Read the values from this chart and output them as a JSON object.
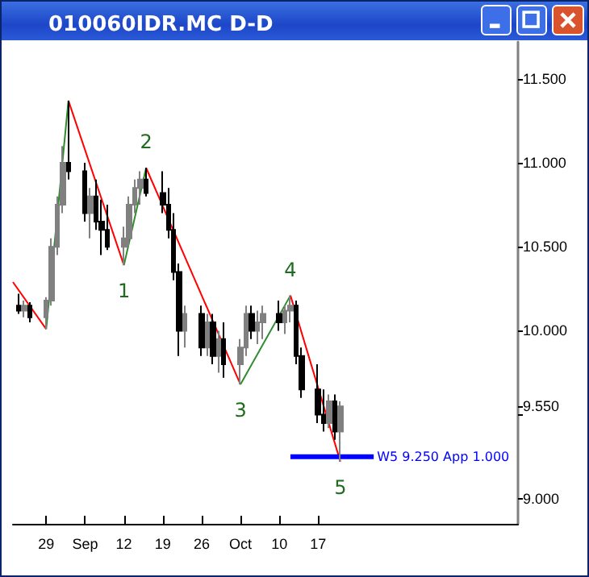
{
  "chart_data": {
    "type": "candlestick",
    "title": "010060IDR.MC D-D",
    "x": [
      "--08-24",
      "--08-25",
      "--08-26",
      "--08-29",
      "--08-30",
      "--08-31",
      "--09-01",
      "--09-02",
      "--09-05",
      "--09-06",
      "--09-07",
      "--09-08",
      "--09-09",
      "--09-12",
      "--09-13",
      "--09-14",
      "--09-15",
      "--09-16",
      "--09-19",
      "--09-20",
      "--09-21",
      "--09-22",
      "--09-23",
      "--09-26",
      "--09-27",
      "--09-28",
      "--09-29",
      "--09-30",
      "--10-03",
      "--10-04",
      "--10-05",
      "--10-06",
      "--10-07",
      "--10-10",
      "--10-11",
      "--10-12",
      "--10-13",
      "--10-14",
      "--10-17",
      "--10-18",
      "--10-19",
      "--10-20",
      "--10-21"
    ],
    "ohlc": [
      [
        10.15,
        10.22,
        10.1,
        10.12
      ],
      [
        10.12,
        10.18,
        10.08,
        10.15
      ],
      [
        10.15,
        10.17,
        10.05,
        10.08
      ],
      [
        10.08,
        10.2,
        10.01,
        10.18
      ],
      [
        10.18,
        10.55,
        10.15,
        10.5
      ],
      [
        10.5,
        10.8,
        10.45,
        10.75
      ],
      [
        10.75,
        11.1,
        10.7,
        11.0
      ],
      [
        11.0,
        11.37,
        10.9,
        10.95
      ],
      [
        10.95,
        11.0,
        10.65,
        10.7
      ],
      [
        10.7,
        10.85,
        10.55,
        10.8
      ],
      [
        10.8,
        10.9,
        10.6,
        10.65
      ],
      [
        10.65,
        10.78,
        10.45,
        10.6
      ],
      [
        10.6,
        10.75,
        10.48,
        10.5
      ],
      [
        10.5,
        10.62,
        10.39,
        10.55
      ],
      [
        10.55,
        10.8,
        10.5,
        10.75
      ],
      [
        10.75,
        10.9,
        10.7,
        10.85
      ],
      [
        10.85,
        10.95,
        10.75,
        10.9
      ],
      [
        10.9,
        10.97,
        10.8,
        10.82
      ],
      [
        10.82,
        10.95,
        10.7,
        10.75
      ],
      [
        10.75,
        10.85,
        10.55,
        10.6
      ],
      [
        10.6,
        10.7,
        10.3,
        10.35
      ],
      [
        10.35,
        10.4,
        9.85,
        10.0
      ],
      [
        10.0,
        10.15,
        9.9,
        10.1
      ],
      [
        10.1,
        10.15,
        9.85,
        9.9
      ],
      [
        9.9,
        10.1,
        9.85,
        10.05
      ],
      [
        10.05,
        10.1,
        9.8,
        9.85
      ],
      [
        9.85,
        10.0,
        9.75,
        9.95
      ],
      [
        9.95,
        10.05,
        9.72,
        9.8
      ],
      [
        9.8,
        9.95,
        9.68,
        9.9
      ],
      [
        9.9,
        10.15,
        9.85,
        10.1
      ],
      [
        10.1,
        10.15,
        9.95,
        10.0
      ],
      [
        10.0,
        10.12,
        9.92,
        10.05
      ],
      [
        10.05,
        10.15,
        9.95,
        10.1
      ],
      [
        10.1,
        10.18,
        10.0,
        10.05
      ],
      [
        10.05,
        10.15,
        9.98,
        10.12
      ],
      [
        10.12,
        10.21,
        10.05,
        10.15
      ],
      [
        10.15,
        10.18,
        9.8,
        9.85
      ],
      [
        9.85,
        9.9,
        9.6,
        9.65
      ],
      [
        9.65,
        9.8,
        9.45,
        9.5
      ],
      [
        9.5,
        9.65,
        9.4,
        9.45
      ],
      [
        9.45,
        9.62,
        9.42,
        9.58
      ],
      [
        9.58,
        9.62,
        9.35,
        9.4
      ],
      [
        9.4,
        9.58,
        9.22,
        9.55
      ]
    ],
    "series": [
      {
        "type": "line",
        "color": "#ff0000",
        "x": [
          "--08-23",
          "--08-29"
        ],
        "values": [
          10.29,
          10.01
        ]
      },
      {
        "type": "line",
        "color": "#2e8b2e",
        "x": [
          "--08-29",
          "--09-02"
        ],
        "values": [
          10.01,
          11.37
        ]
      },
      {
        "type": "line",
        "color": "#ff0000",
        "x": [
          "--09-02",
          "--09-12"
        ],
        "values": [
          11.37,
          10.39
        ]
      },
      {
        "type": "line",
        "color": "#2e8b2e",
        "x": [
          "--09-12",
          "--09-16"
        ],
        "values": [
          10.39,
          10.97
        ]
      },
      {
        "type": "line",
        "color": "#ff0000",
        "x": [
          "--09-16",
          "--10-03"
        ],
        "values": [
          10.97,
          9.68
        ]
      },
      {
        "type": "line",
        "color": "#2e8b2e",
        "x": [
          "--10-03",
          "--10-12"
        ],
        "values": [
          9.68,
          10.21
        ]
      },
      {
        "type": "line",
        "color": "#ff0000",
        "x": [
          "--10-12",
          "--10-21"
        ],
        "values": [
          10.21,
          9.22
        ]
      },
      {
        "type": "line",
        "color": "#0000ff",
        "x": [
          "--10-12",
          "--10-27"
        ],
        "values": [
          9.25,
          9.25
        ]
      }
    ],
    "annotations": [
      {
        "text": "1",
        "x": "--09-12",
        "y": 10.39
      },
      {
        "text": "2",
        "x": "--09-16",
        "y": 10.97
      },
      {
        "text": "3",
        "x": "--10-03",
        "y": 9.68
      },
      {
        "text": "4",
        "x": "--10-12",
        "y": 10.21
      },
      {
        "text": "5",
        "x": "--10-21",
        "y": 9.22
      },
      {
        "text": "W5 9.250 App 1.000",
        "x": "--10-27",
        "y": 9.25
      }
    ],
    "xlim": [
      "--08-23",
      "--11-22"
    ],
    "xticks": [
      {
        "value": "--08-29",
        "label": "29"
      },
      {
        "value": "--09-05",
        "label": "Sep"
      },
      {
        "value": "--09-12",
        "label": "12"
      },
      {
        "value": "--09-19",
        "label": "19"
      },
      {
        "value": "--09-26",
        "label": "26"
      },
      {
        "value": "--10-03",
        "label": "Oct"
      },
      {
        "value": "--10-10",
        "label": "10"
      },
      {
        "value": "--10-17",
        "label": "17"
      }
    ],
    "ylim": [
      8.85,
      11.72
    ],
    "yticks": [
      {
        "value": 9,
        "label": "9.000"
      },
      {
        "value": 9.5,
        "label": null
      },
      {
        "value": 9.55,
        "label": "9.550"
      },
      {
        "value": 10,
        "label": "10.000"
      },
      {
        "value": 10.5,
        "label": "10.500"
      },
      {
        "value": 11,
        "label": "11.000"
      },
      {
        "value": 11.5,
        "label": "11.500"
      }
    ],
    "grid": false,
    "marker": "none"
  }
}
